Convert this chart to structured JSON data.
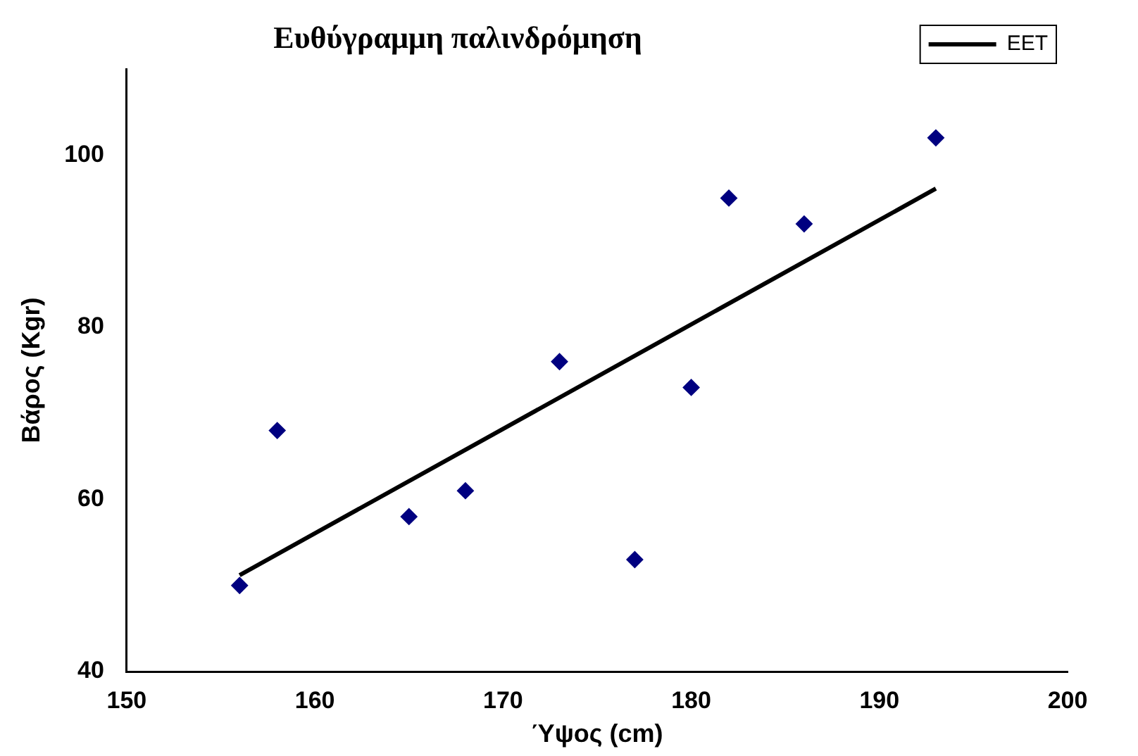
{
  "chart_data": {
    "type": "scatter",
    "title": "Ευθύγραμμη παλινδρόμηση",
    "xlabel": "Ύψος (cm)",
    "ylabel": "Βάρος (Kgr)",
    "xlim": [
      150,
      200
    ],
    "xticks": [
      150,
      160,
      170,
      180,
      190,
      200
    ],
    "ylim": [
      40,
      110
    ],
    "yticks": [
      40,
      60,
      80,
      100
    ],
    "grid": false,
    "legend": "top right",
    "marker": "diamond",
    "series": [
      {
        "color": "#000080",
        "x": [
          156,
          158,
          165,
          168,
          173,
          177,
          180,
          182,
          186,
          193
        ],
        "values": [
          50,
          68,
          58,
          61,
          76,
          53,
          73,
          95,
          92,
          102
        ]
      },
      {
        "type": "line",
        "name": "EET",
        "color": "#000000",
        "marker": "none",
        "x": [
          156,
          193
        ],
        "values": [
          51.2,
          96.1
        ]
      }
    ]
  }
}
